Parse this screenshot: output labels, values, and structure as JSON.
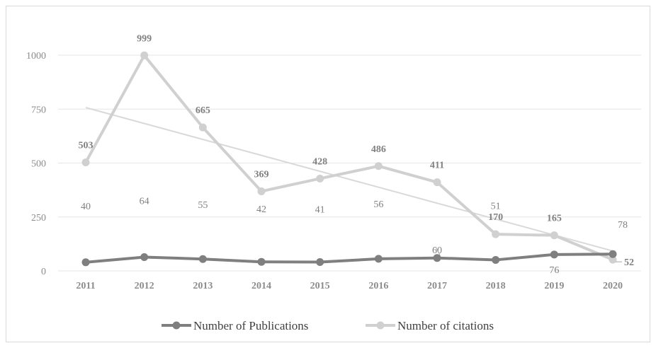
{
  "chart_data": {
    "type": "line",
    "categories": [
      "2011",
      "2012",
      "2013",
      "2014",
      "2015",
      "2016",
      "2017",
      "2018",
      "2019",
      "2020"
    ],
    "series": [
      {
        "name": "Number of Publications",
        "values": [
          40,
          64,
          55,
          42,
          41,
          56,
          60,
          51,
          76,
          78
        ],
        "color": "#7f7f7f"
      },
      {
        "name": "Number of citations",
        "values": [
          503,
          999,
          665,
          369,
          428,
          486,
          411,
          170,
          165,
          52
        ],
        "color": "#d0d0d0"
      }
    ],
    "trendline": {
      "of_series": "Number of citations",
      "type": "linear",
      "color": "#d9d9d9"
    },
    "ylim": [
      0,
      1000
    ],
    "yticks": [
      0,
      250,
      500,
      750,
      1000
    ],
    "grid": true,
    "legend": "bottom",
    "title": "",
    "xlabel": "",
    "ylabel": ""
  }
}
